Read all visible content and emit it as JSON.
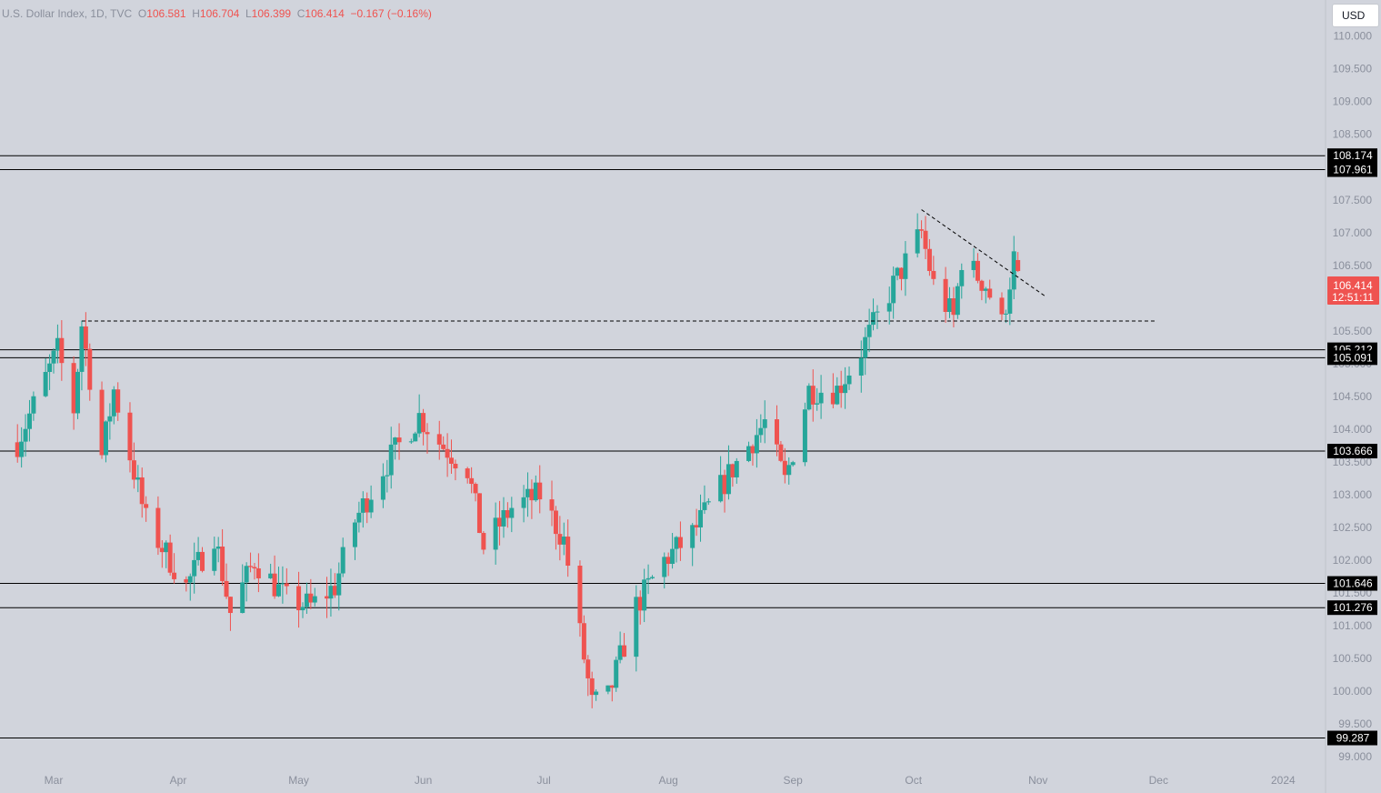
{
  "header": {
    "symbol": "U.S. Dollar Index, 1D, TVC",
    "open_label": "O",
    "open": "106.581",
    "high_label": "H",
    "high": "106.704",
    "low_label": "L",
    "low": "106.399",
    "close_label": "C",
    "close": "106.414",
    "change": "−0.167 (−0.16%)"
  },
  "currency_button": "USD",
  "price_tag": {
    "value": "106.414",
    "countdown": "12:51:11"
  },
  "colors": {
    "background": "#d1d4dc",
    "up": "#26a69a",
    "down": "#ef5350",
    "line": "#000000",
    "axis_text": "#8a8f9c"
  },
  "chart_data": {
    "type": "candlestick",
    "y_axis": {
      "min": 98.85,
      "max": 110.55,
      "ticks": [
        "99.000",
        "99.500",
        "100.000",
        "100.500",
        "101.000",
        "101.500",
        "102.000",
        "102.500",
        "103.000",
        "103.500",
        "104.000",
        "104.500",
        "105.000",
        "105.500",
        "106.000",
        "106.500",
        "107.000",
        "107.500",
        "108.000",
        "108.500",
        "109.000",
        "109.500",
        "110.000"
      ]
    },
    "x_axis": {
      "labels": [
        {
          "label": "Mar",
          "date": "2023-03-01"
        },
        {
          "label": "Apr",
          "date": "2023-04-01"
        },
        {
          "label": "May",
          "date": "2023-05-01"
        },
        {
          "label": "Jun",
          "date": "2023-06-01"
        },
        {
          "label": "Jul",
          "date": "2023-07-01"
        },
        {
          "label": "Aug",
          "date": "2023-08-01"
        },
        {
          "label": "Sep",
          "date": "2023-09-01"
        },
        {
          "label": "Oct",
          "date": "2023-10-01"
        },
        {
          "label": "Nov",
          "date": "2023-11-01"
        },
        {
          "label": "Dec",
          "date": "2023-12-01"
        },
        {
          "label": "2024",
          "date": "2024-01-01"
        }
      ]
    },
    "horizontal_levels": [
      "108.174",
      "107.961",
      "105.212",
      "105.091",
      "103.666",
      "101.646",
      "101.276",
      "99.287"
    ],
    "dashed_lines": [
      {
        "from": {
          "date": "2023-03-08",
          "price": 105.65
        },
        "to": {
          "date": "2023-11-30",
          "price": 105.65
        }
      },
      {
        "from": {
          "date": "2023-10-03",
          "price": 107.35
        },
        "to": {
          "date": "2023-11-03",
          "price": 106.02
        }
      }
    ],
    "price_path": [
      {
        "date": "2023-02-20",
        "price": 103.8
      },
      {
        "date": "2023-03-02",
        "price": 105.2
      },
      {
        "date": "2023-03-06",
        "price": 104.3
      },
      {
        "date": "2023-03-08",
        "price": 105.6
      },
      {
        "date": "2023-03-13",
        "price": 103.6
      },
      {
        "date": "2023-03-16",
        "price": 104.6
      },
      {
        "date": "2023-03-24",
        "price": 102.6
      },
      {
        "date": "2023-04-03",
        "price": 101.6
      },
      {
        "date": "2023-04-10",
        "price": 102.4
      },
      {
        "date": "2023-04-14",
        "price": 101.2
      },
      {
        "date": "2023-04-20",
        "price": 102.0
      },
      {
        "date": "2023-04-28",
        "price": 101.4
      },
      {
        "date": "2023-05-04",
        "price": 101.3
      },
      {
        "date": "2023-05-10",
        "price": 101.6
      },
      {
        "date": "2023-05-15",
        "price": 102.6
      },
      {
        "date": "2023-05-22",
        "price": 103.4
      },
      {
        "date": "2023-05-31",
        "price": 104.2
      },
      {
        "date": "2023-06-05",
        "price": 103.8
      },
      {
        "date": "2023-06-12",
        "price": 103.4
      },
      {
        "date": "2023-06-16",
        "price": 102.2
      },
      {
        "date": "2023-06-23",
        "price": 102.8
      },
      {
        "date": "2023-06-30",
        "price": 103.0
      },
      {
        "date": "2023-07-06",
        "price": 102.3
      },
      {
        "date": "2023-07-13",
        "price": 99.8
      },
      {
        "date": "2023-07-17",
        "price": 99.9
      },
      {
        "date": "2023-07-24",
        "price": 101.3
      },
      {
        "date": "2023-07-31",
        "price": 102.0
      },
      {
        "date": "2023-08-07",
        "price": 102.4
      },
      {
        "date": "2023-08-17",
        "price": 103.4
      },
      {
        "date": "2023-08-25",
        "price": 104.1
      },
      {
        "date": "2023-08-30",
        "price": 103.2
      },
      {
        "date": "2023-09-05",
        "price": 104.6
      },
      {
        "date": "2023-09-12",
        "price": 104.6
      },
      {
        "date": "2023-09-18",
        "price": 105.2
      },
      {
        "date": "2023-09-26",
        "price": 106.2
      },
      {
        "date": "2023-10-03",
        "price": 107.0
      },
      {
        "date": "2023-10-06",
        "price": 106.2
      },
      {
        "date": "2023-10-11",
        "price": 105.7
      },
      {
        "date": "2023-10-13",
        "price": 106.6
      },
      {
        "date": "2023-10-19",
        "price": 106.2
      },
      {
        "date": "2023-10-23",
        "price": 105.6
      },
      {
        "date": "2023-10-26",
        "price": 106.6
      },
      {
        "date": "2023-10-27",
        "price": 106.414
      }
    ]
  }
}
